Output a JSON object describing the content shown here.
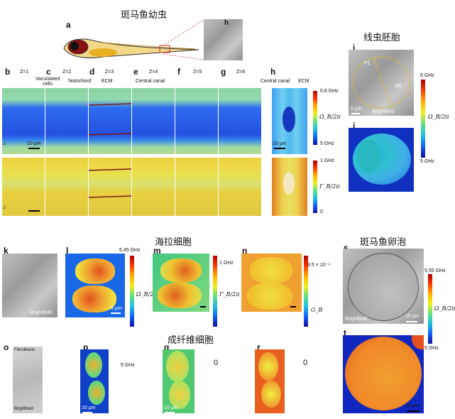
{
  "titles": {
    "zebrafish_larva": "斑马鱼幼虫",
    "nematode_embryo": "线虫胚胎",
    "hela_cells": "海拉细胞",
    "fibroblasts": "成纤维细胞",
    "zebrafish_oocyte": "斑马鱼卵泡"
  },
  "panel_letters": {
    "a": "a",
    "b": "b",
    "c": "c",
    "d": "d",
    "e": "e",
    "f": "f",
    "g": "g",
    "h": "h",
    "i": "i",
    "j": "j",
    "k": "k",
    "l": "l",
    "m": "m",
    "n": "n",
    "o": "o",
    "p": "p",
    "q": "q",
    "r": "r",
    "s": "s",
    "t": "t"
  },
  "z_labels": [
    "Z=1",
    "Z=2",
    "Z=3",
    "Z=4",
    "Z=5",
    "Z=6"
  ],
  "annotations": {
    "vacuolated_cells": "Vacuolated cells",
    "notochord": "Notochord",
    "ecm": "ECM",
    "central_canal": "Central canal",
    "central_canal_h": "Central canal",
    "ecm_h": "ECM",
    "p1": "P1",
    "ab": "AB",
    "brightfield": "Brightfield",
    "fibroblasts_label": "Fibroblasts"
  },
  "scalebars": {
    "ten_um": "10 μm",
    "five_um": "5 μm"
  },
  "colorbars": {
    "row1_top": "5.6 GHz",
    "row1_bottom": "5 GHz",
    "row1_symbol": "Ω_B/2π",
    "row2_top": "1 GHz",
    "row2_bottom": "0",
    "row2_symbol": "Γ_B/2π",
    "nematode_top": "6 GHz",
    "nematode_bottom": "5 GHz",
    "nematode_symbol": "Ω_B/2π",
    "hela_shift_top": "5.45 GHz",
    "hela_shift_bottom": "5 GHz",
    "hela_shift_symbol": "Ω_B/2π",
    "hela_width_top": "1 GHz",
    "hela_width_bottom": "0",
    "hela_width_symbol": "Γ_B/2π",
    "hela_gain_top": "8.5 × 10⁻⁴",
    "hela_gain_bottom": "0",
    "hela_gain_symbol": "G_B",
    "oocyte_top": "5.55 GHz",
    "oocyte_bottom": "5 GHz",
    "oocyte_symbol": "Ω_B/2π"
  },
  "axes_glyph": {
    "z": "z",
    "x": "x",
    "y": "y"
  },
  "colors": {
    "jet_red": "#b00000",
    "jet_yellow": "#f0f020",
    "jet_blue": "#1010a0",
    "annotation_dash": "#e0c020",
    "zoom_line": "#d03030"
  }
}
